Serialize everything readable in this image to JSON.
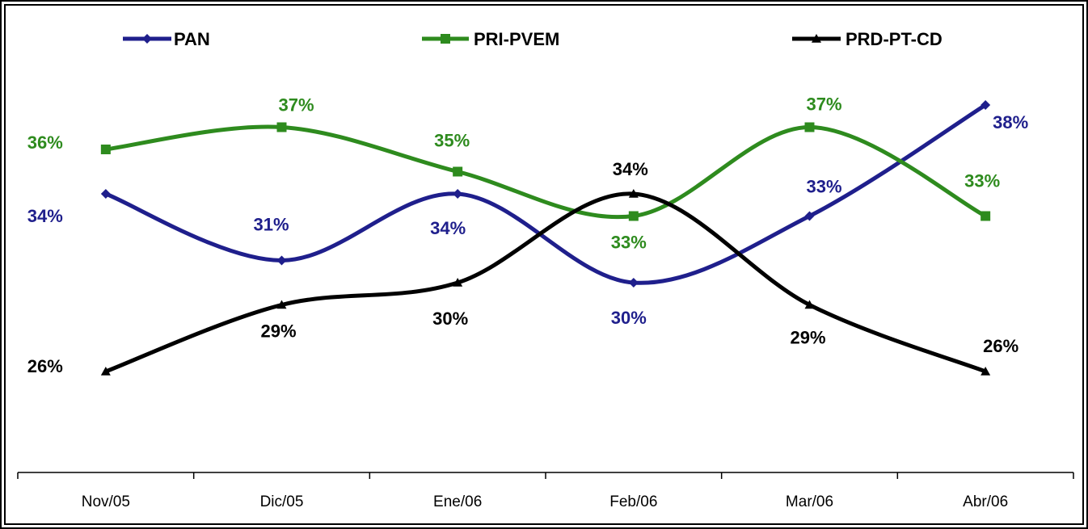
{
  "chart_data": {
    "type": "line",
    "categories": [
      "Nov/05",
      "Dic/05",
      "Ene/06",
      "Feb/06",
      "Mar/06",
      "Abr/06"
    ],
    "series": [
      {
        "name": "PAN",
        "color": "#1f1f8c",
        "marker": "diamond",
        "values": [
          34,
          31,
          34,
          30,
          33,
          38
        ],
        "value_labels": [
          "34%",
          "31%",
          "34%",
          "30%",
          "33%",
          "38%"
        ]
      },
      {
        "name": "PRI-PVEM",
        "color": "#2e8b1e",
        "marker": "square",
        "values": [
          36,
          37,
          35,
          33,
          37,
          33
        ],
        "value_labels": [
          "36%",
          "37%",
          "35%",
          "33%",
          "37%",
          "33%"
        ]
      },
      {
        "name": "PRD-PT-CD",
        "color": "#000000",
        "marker": "triangle",
        "values": [
          26,
          29,
          30,
          34,
          29,
          26
        ],
        "value_labels": [
          "26%",
          "29%",
          "30%",
          "34%",
          "29%",
          "26%"
        ]
      }
    ],
    "legend": "top"
  }
}
